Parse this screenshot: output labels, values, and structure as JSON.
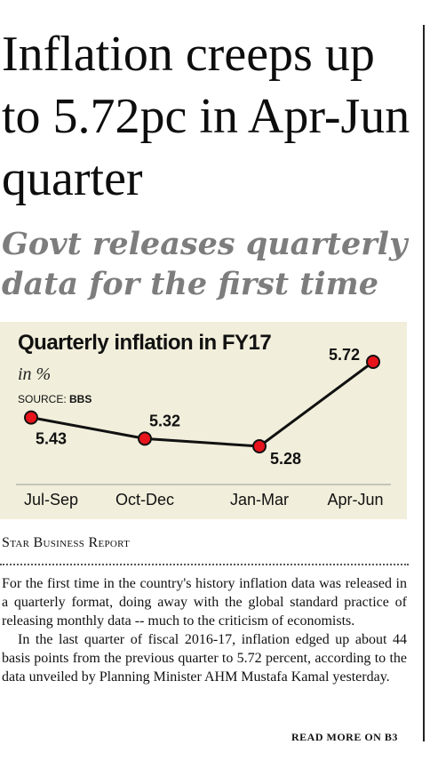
{
  "headline": "Inflation creeps up to 5.72pc in Apr-Jun quarter",
  "subheadline": "Govt releases quarterly data for the first time",
  "chart_data": {
    "type": "line",
    "title": "Quarterly inflation in FY17",
    "unit_label": "in %",
    "source_prefix": "SOURCE: ",
    "source_name": "BBS",
    "categories": [
      "Jul-Sep",
      "Oct-Dec",
      "Jan-Mar",
      "Apr-Jun"
    ],
    "values": [
      5.43,
      5.32,
      5.28,
      5.72
    ],
    "data_labels": [
      "5.43",
      "5.32",
      "5.28",
      "5.72"
    ],
    "colors": {
      "line": "#111111",
      "marker": "#e8141c",
      "background": "#f1efdb"
    }
  },
  "byline": "Star Business Report",
  "paragraphs": [
    "For the first time in the country's history inflation data was released in a quarterly format, doing away with the global standard practice of releasing monthly data -- much to the criticism of economists.",
    "In the last quarter of fiscal 2016-17, inflation edged up about 44 basis points from the previous quarter to 5.72 percent, according to the data unveiled by Planning Minister AHM Mustafa Kamal yesterday."
  ],
  "read_more": "READ MORE ON B3"
}
